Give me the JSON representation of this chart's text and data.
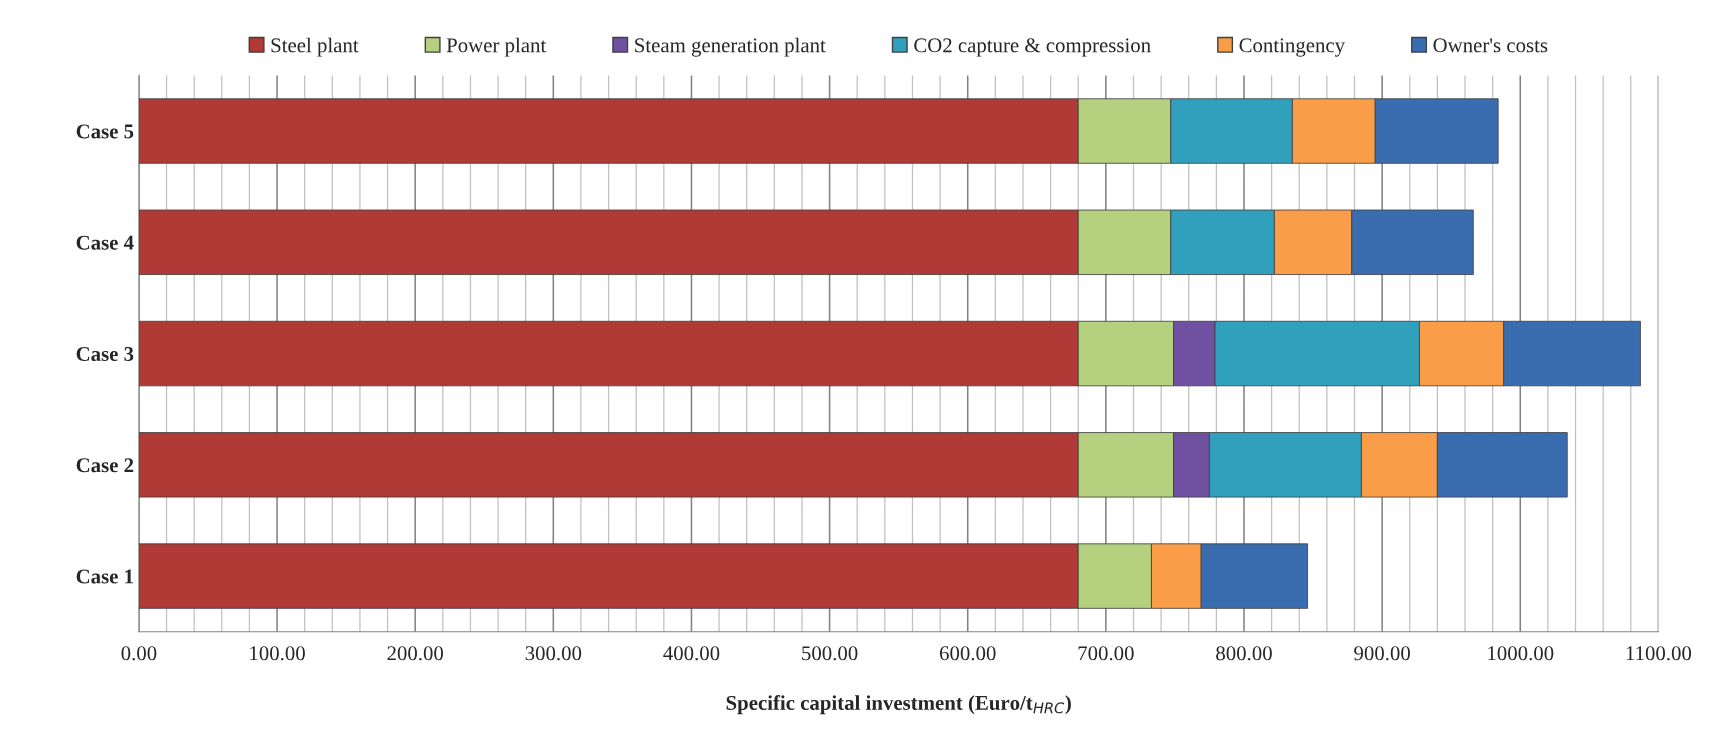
{
  "chart_data": {
    "type": "bar",
    "orientation": "horizontal",
    "stacked": true,
    "categories": [
      "Case 5",
      "Case 4",
      "Case 3",
      "Case 2",
      "Case 1"
    ],
    "series": [
      {
        "name": "Steel plant",
        "color": "#b03a36",
        "values": [
          680,
          680,
          680,
          680,
          680
        ]
      },
      {
        "name": "Power plant",
        "color": "#b5d07f",
        "values": [
          67,
          67,
          69,
          69,
          53
        ]
      },
      {
        "name": "Steam generation plant",
        "color": "#7050a0",
        "values": [
          null,
          null,
          30,
          26,
          null
        ]
      },
      {
        "name": "CO2 capture & compression",
        "color": "#31a0bd",
        "values": [
          88,
          75,
          148,
          110,
          null
        ]
      },
      {
        "name": "Contingency",
        "color": "#f99d48",
        "values": [
          60,
          56,
          61,
          55,
          36
        ]
      },
      {
        "name": "Owner's costs",
        "color": "#3a6db0",
        "values": [
          89,
          88,
          99,
          94,
          77
        ]
      }
    ],
    "xlabel": "Specific capital investment (Euro/t$_{HRC}$)",
    "xlim": [
      0,
      1100
    ],
    "xticks": [
      {
        "value": 0,
        "label": "0.00"
      },
      {
        "value": 100,
        "label": "100.00"
      },
      {
        "value": 200,
        "label": "200.00"
      },
      {
        "value": 300,
        "label": "300.00"
      },
      {
        "value": 400,
        "label": "400.00"
      },
      {
        "value": 500,
        "label": "500.00"
      },
      {
        "value": 600,
        "label": "600.00"
      },
      {
        "value": 700,
        "label": "700.00"
      },
      {
        "value": 800,
        "label": "800.00"
      },
      {
        "value": 900,
        "label": "900.00"
      },
      {
        "value": 1000,
        "label": "1000.00"
      },
      {
        "value": 1100,
        "label": "1100.00"
      }
    ],
    "grid": "x",
    "legend": "top"
  }
}
